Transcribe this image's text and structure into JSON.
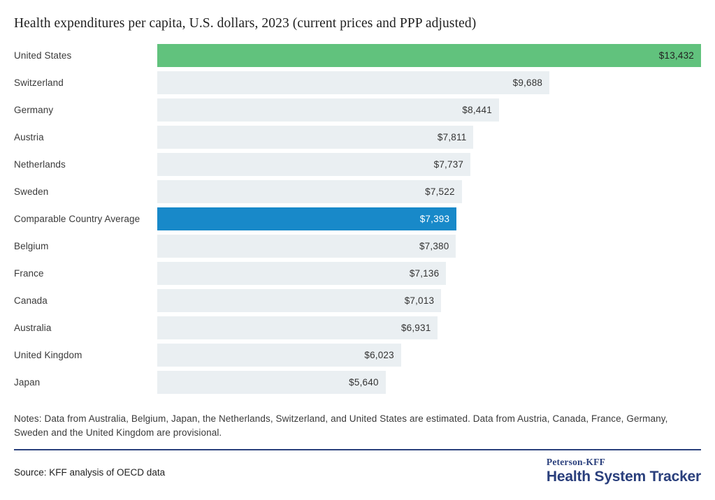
{
  "title": "Health expenditures per capita, U.S. dollars, 2023 (current prices and PPP adjusted)",
  "chart_data": {
    "type": "bar",
    "orientation": "horizontal",
    "title": "Health expenditures per capita, U.S. dollars, 2023 (current prices and PPP adjusted)",
    "xlim": [
      0,
      13432
    ],
    "grid": false,
    "legend": false,
    "categories": [
      "United States",
      "Switzerland",
      "Germany",
      "Austria",
      "Netherlands",
      "Sweden",
      "Comparable Country Average",
      "Belgium",
      "France",
      "Canada",
      "Australia",
      "United Kingdom",
      "Japan"
    ],
    "values": [
      13432,
      9688,
      8441,
      7811,
      7737,
      7522,
      7393,
      7380,
      7136,
      7013,
      6931,
      6023,
      5640
    ],
    "rows": [
      {
        "label": "United States",
        "value": 13432,
        "value_label": "$13,432",
        "bar_color": "#61c27d",
        "value_color": "#222222"
      },
      {
        "label": "Switzerland",
        "value": 9688,
        "value_label": "$9,688",
        "bar_color": "#eaeff2",
        "value_color": "#333333"
      },
      {
        "label": "Germany",
        "value": 8441,
        "value_label": "$8,441",
        "bar_color": "#eaeff2",
        "value_color": "#333333"
      },
      {
        "label": "Austria",
        "value": 7811,
        "value_label": "$7,811",
        "bar_color": "#eaeff2",
        "value_color": "#333333"
      },
      {
        "label": "Netherlands",
        "value": 7737,
        "value_label": "$7,737",
        "bar_color": "#eaeff2",
        "value_color": "#333333"
      },
      {
        "label": "Sweden",
        "value": 7522,
        "value_label": "$7,522",
        "bar_color": "#eaeff2",
        "value_color": "#333333"
      },
      {
        "label": "Comparable Country Average",
        "value": 7393,
        "value_label": "$7,393",
        "bar_color": "#1889c9",
        "value_color": "#ffffff"
      },
      {
        "label": "Belgium",
        "value": 7380,
        "value_label": "$7,380",
        "bar_color": "#eaeff2",
        "value_color": "#333333"
      },
      {
        "label": "France",
        "value": 7136,
        "value_label": "$7,136",
        "bar_color": "#eaeff2",
        "value_color": "#333333"
      },
      {
        "label": "Canada",
        "value": 7013,
        "value_label": "$7,013",
        "bar_color": "#eaeff2",
        "value_color": "#333333"
      },
      {
        "label": "Australia",
        "value": 6931,
        "value_label": "$6,931",
        "bar_color": "#eaeff2",
        "value_color": "#333333"
      },
      {
        "label": "United Kingdom",
        "value": 6023,
        "value_label": "$6,023",
        "bar_color": "#eaeff2",
        "value_color": "#333333"
      },
      {
        "label": "Japan",
        "value": 5640,
        "value_label": "$5,640",
        "bar_color": "#eaeff2",
        "value_color": "#333333"
      }
    ],
    "colors": {
      "highlight_us": "#61c27d",
      "highlight_average": "#1889c9",
      "default_bar": "#eaeff2",
      "divider_navy": "#2a417c"
    }
  },
  "notes": "Notes: Data from Australia, Belgium, Japan, the Netherlands, Switzerland, and United States are estimated. Data from Austria, Canada, France, Germany, Sweden and the United Kingdom are provisional.",
  "source": "Source: KFF analysis of OECD data",
  "logo": {
    "line1": "Peterson-KFF",
    "line2": "Health System Tracker"
  }
}
